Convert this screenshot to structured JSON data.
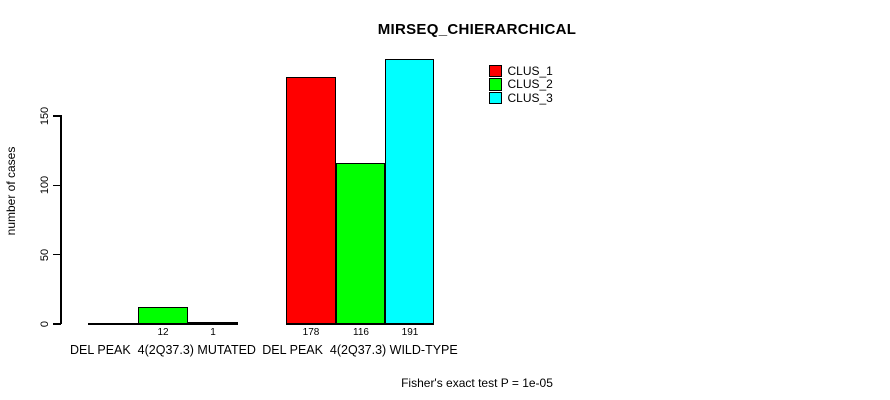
{
  "chart_data": {
    "type": "bar",
    "title": "MIRSEQ_CHIERARCHICAL",
    "xlabel": "",
    "ylabel": "number of cases",
    "yticks": [
      0,
      50,
      100,
      150
    ],
    "ylim": [
      0,
      191
    ],
    "grid": false,
    "legend_position": "top-right",
    "bar_colors_note": "R-style grouped barplot, black bar borders, white background",
    "categories": [
      "DEL PEAK  4(2Q37.3) MUTATED",
      "DEL PEAK  4(2Q37.3) WILD-TYPE"
    ],
    "series": [
      {
        "name": "CLUS_1",
        "color": "#ff0000",
        "values": [
          0,
          178
        ]
      },
      {
        "name": "CLUS_2",
        "color": "#00ff00",
        "values": [
          12,
          116
        ]
      },
      {
        "name": "CLUS_3",
        "color": "#00ffff",
        "values": [
          1,
          191
        ]
      }
    ],
    "bar_labels": [
      [
        "",
        "12",
        "1"
      ],
      [
        "178",
        "116",
        "191"
      ]
    ],
    "annotation": "Fisher's exact test P = 1e-05"
  }
}
